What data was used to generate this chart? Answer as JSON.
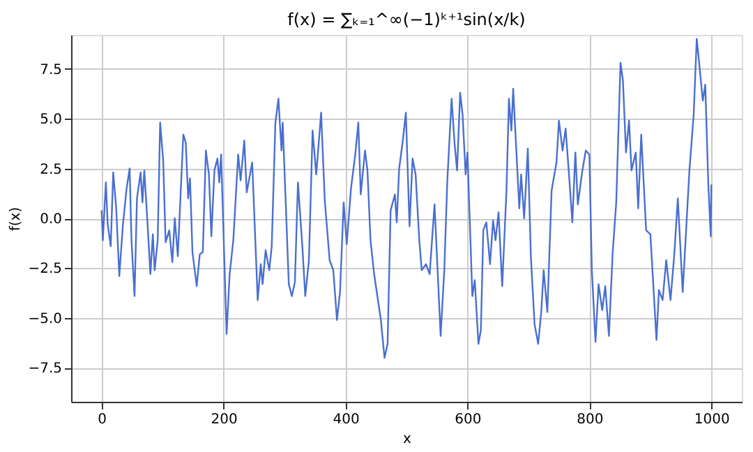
{
  "chart_data": {
    "type": "line",
    "title": "f(x) = ∑ₖ₌₁^∞(−1)ᵏ⁺¹sin(x/k)",
    "xlabel": "x",
    "ylabel": "f(x)",
    "xlim": [
      -50,
      1050
    ],
    "xticks": [
      0,
      200,
      400,
      600,
      800,
      {
        "value": 1000,
        "label": "1000"
      }
    ],
    "ylim": [
      -9.2,
      9.2
    ],
    "yticks": [
      {
        "value": -7.5,
        "label": "−7.5"
      },
      {
        "value": -5,
        "label": "−5.0"
      },
      {
        "value": -2.5,
        "label": "−2.5"
      },
      {
        "value": 0,
        "label": "0.0"
      },
      {
        "value": 2.5,
        "label": "2.5"
      },
      {
        "value": 5,
        "label": "5.0"
      },
      {
        "value": 7.5,
        "label": "7.5"
      }
    ],
    "grid": true,
    "line_style": "solid",
    "marker": "none",
    "series": [
      {
        "color": "#4a6fd0",
        "x": [
          0,
          2,
          7,
          10,
          15,
          19,
          24,
          29,
          35,
          41,
          46,
          49,
          54,
          58,
          64,
          67,
          70,
          75,
          80,
          84,
          87,
          92,
          96,
          101,
          105,
          111,
          116,
          120,
          125,
          134,
          138,
          142,
          145,
          149,
          156,
          161,
          166,
          171,
          176,
          180,
          185,
          190,
          193,
          196,
          205,
          210,
          216,
          224,
          228,
          234,
          238,
          247,
          256,
          261,
          264,
          269,
          275,
          279,
          285,
          290,
          295,
          297,
          307,
          312,
          317,
          322,
          329,
          334,
          340,
          346,
          352,
          360,
          366,
          374,
          380,
          386,
          391,
          397,
          402,
          409,
          416,
          421,
          425,
          432,
          436,
          441,
          447,
          458,
          464,
          469,
          474,
          481,
          484,
          488,
          494,
          499,
          505,
          510,
          515,
          521,
          525,
          532,
          538,
          546,
          550,
          556,
          562,
          567,
          574,
          579,
          583,
          588,
          592,
          597,
          600,
          608,
          612,
          618,
          622,
          626,
          631,
          637,
          642,
          646,
          651,
          657,
          664,
          668,
          672,
          675,
          681,
          685,
          688,
          693,
          699,
          704,
          710,
          716,
          721,
          725,
          731,
          738,
          746,
          750,
          756,
          761,
          767,
          772,
          777,
          781,
          788,
          794,
          800,
          804,
          810,
          815,
          821,
          826,
          832,
          838,
          844,
          851,
          855,
          860,
          865,
          869,
          876,
          880,
          885,
          893,
          900,
          910,
          914,
          920,
          926,
          933,
          939,
          945,
          953,
          964,
          971,
          976,
          979,
          986,
          990,
          995,
          999,
          1000
        ],
        "values": [
          0.4,
          -1.1,
          1.8,
          -0.3,
          -1.4,
          2.3,
          0.5,
          -2.9,
          -0.3,
          1.5,
          2.5,
          -1.1,
          -3.9,
          1.0,
          2.3,
          0.8,
          2.4,
          -0.1,
          -2.8,
          -0.8,
          -2.6,
          -1.1,
          4.8,
          2.9,
          -1.2,
          -0.6,
          -2.2,
          0.0,
          -1.9,
          4.2,
          3.8,
          1.0,
          2.0,
          -1.7,
          -3.4,
          -1.8,
          -1.7,
          3.4,
          2.2,
          -0.9,
          2.4,
          3.0,
          1.8,
          3.2,
          -5.8,
          -2.8,
          -1.1,
          3.2,
          1.9,
          3.9,
          1.3,
          2.8,
          -4.1,
          -2.3,
          -3.3,
          -1.6,
          -2.6,
          -1.4,
          4.8,
          6.0,
          3.4,
          4.8,
          -3.3,
          -3.9,
          -3.2,
          1.8,
          -1.3,
          -3.9,
          -2.1,
          4.4,
          2.2,
          5.3,
          0.9,
          -2.1,
          -2.6,
          -5.1,
          -3.7,
          0.8,
          -1.3,
          1.5,
          3.2,
          4.8,
          1.2,
          3.4,
          2.4,
          -1.1,
          -2.8,
          -5.1,
          -7.0,
          -6.3,
          0.4,
          1.2,
          -0.2,
          2.5,
          3.9,
          5.3,
          -0.4,
          3.0,
          2.2,
          -1.1,
          -2.6,
          -2.3,
          -2.8,
          0.7,
          -1.9,
          -5.9,
          -2.6,
          1.9,
          6.0,
          3.7,
          2.4,
          6.3,
          5.2,
          2.2,
          3.3,
          -3.9,
          -3.1,
          -6.3,
          -5.6,
          -0.6,
          -0.2,
          -2.3,
          -0.1,
          -1.1,
          0.3,
          -3.4,
          1.4,
          6.0,
          4.4,
          6.5,
          2.9,
          0.5,
          2.2,
          0.0,
          3.5,
          -1.9,
          -5.3,
          -6.3,
          -4.7,
          -2.6,
          -4.7,
          1.4,
          2.8,
          4.9,
          3.4,
          4.5,
          2.0,
          -0.2,
          3.3,
          0.7,
          2.3,
          3.4,
          3.2,
          -2.6,
          -6.2,
          -3.3,
          -4.6,
          -3.4,
          -5.9,
          -1.8,
          0.8,
          7.8,
          6.9,
          3.3,
          4.9,
          2.4,
          3.3,
          0.5,
          4.2,
          -0.6,
          -0.8,
          -6.1,
          -3.6,
          -4.1,
          -2.1,
          -4.1,
          -1.9,
          1.0,
          -3.7,
          2.4,
          5.2,
          9.0,
          8.1,
          5.9,
          6.7,
          1.7,
          -0.9,
          1.7
        ]
      }
    ]
  }
}
